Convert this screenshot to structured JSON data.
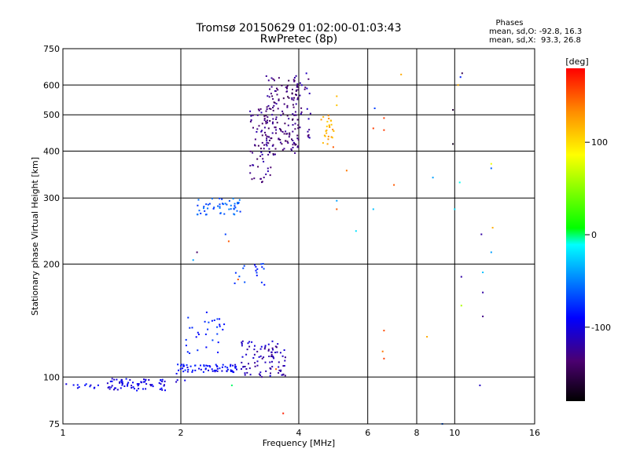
{
  "chart_data": {
    "type": "scatter",
    "title_lines": [
      "Tromsø 20150629 01:02:00-01:03:43",
      "RwPretec (8p)"
    ],
    "stats": {
      "heading": "Phases",
      "lines": [
        "mean, sd,O: -92.8, 16.3",
        "mean, sd,X:  93.3, 26.8"
      ]
    },
    "xlabel": "Frequency [MHz]",
    "ylabel": "Stationary phase Virtual Height [km]",
    "x_scale": "log",
    "y_scale": "log",
    "xlim": [
      1,
      16
    ],
    "ylim": [
      75,
      750
    ],
    "x_ticks": [
      1,
      2,
      4,
      6,
      8,
      10,
      16
    ],
    "x_tick_labels": [
      "1",
      "2",
      "4",
      "6",
      "8",
      "10",
      "16"
    ],
    "y_ticks": [
      75,
      100,
      200,
      300,
      400,
      500,
      600,
      750
    ],
    "y_tick_labels": [
      "75",
      "100",
      "200",
      "300",
      "400",
      "500",
      "600",
      "750"
    ],
    "x_gridlines": [
      2,
      4,
      6,
      8,
      10
    ],
    "y_gridlines": [
      100,
      200,
      300,
      400,
      500,
      600
    ],
    "colorbar": {
      "unit": "[deg]",
      "min": -180,
      "max": 180,
      "ticks": [
        100,
        0,
        -100
      ],
      "tick_labels": [
        "100",
        "0",
        "-100"
      ]
    },
    "clusters": [
      {
        "x_range": [
          1.02,
          1.25
        ],
        "y_range": [
          93,
          96
        ],
        "n": 12,
        "phase": -95
      },
      {
        "x_range": [
          1.3,
          1.85
        ],
        "y_range": [
          92,
          99
        ],
        "n": 70,
        "phase": -100
      },
      {
        "x_range": [
          1.9,
          2.05
        ],
        "y_range": [
          97,
          110
        ],
        "n": 10,
        "phase": -95
      },
      {
        "x_range": [
          2.0,
          2.8
        ],
        "y_range": [
          103,
          108
        ],
        "n": 60,
        "phase": -90
      },
      {
        "x_range": [
          2.0,
          2.6
        ],
        "y_range": [
          115,
          150
        ],
        "n": 30,
        "phase": -80
      },
      {
        "x_range": [
          2.85,
          3.7
        ],
        "y_range": [
          100,
          125
        ],
        "n": 90,
        "phase": -115
      },
      {
        "x_range": [
          2.2,
          2.85
        ],
        "y_range": [
          270,
          300
        ],
        "n": 50,
        "phase": -60
      },
      {
        "x_range": [
          2.7,
          3.3
        ],
        "y_range": [
          175,
          205
        ],
        "n": 18,
        "phase": -75
      },
      {
        "x_range": [
          3.0,
          3.4
        ],
        "y_range": [
          330,
          520
        ],
        "n": 70,
        "phase": -130
      },
      {
        "x_range": [
          3.3,
          4.0
        ],
        "y_range": [
          390,
          640
        ],
        "n": 160,
        "phase": -135
      },
      {
        "x_range": [
          3.9,
          4.3
        ],
        "y_range": [
          430,
          650
        ],
        "n": 25,
        "phase": -125
      },
      {
        "x_range": [
          4.55,
          4.95
        ],
        "y_range": [
          415,
          500
        ],
        "n": 25,
        "phase": 120
      }
    ],
    "points": [
      {
        "x": 2.2,
        "y": 215,
        "phase": -140
      },
      {
        "x": 2.15,
        "y": 205,
        "phase": -40
      },
      {
        "x": 2.6,
        "y": 240,
        "phase": -70
      },
      {
        "x": 2.65,
        "y": 230,
        "phase": 150
      },
      {
        "x": 2.8,
        "y": 182,
        "phase": 150
      },
      {
        "x": 3.65,
        "y": 80,
        "phase": 170
      },
      {
        "x": 3.5,
        "y": 105,
        "phase": 150
      },
      {
        "x": 2.7,
        "y": 95,
        "phase": 0
      },
      {
        "x": 5.0,
        "y": 560,
        "phase": 115
      },
      {
        "x": 5.0,
        "y": 530,
        "phase": 110
      },
      {
        "x": 4.9,
        "y": 410,
        "phase": 150
      },
      {
        "x": 5.3,
        "y": 355,
        "phase": 140
      },
      {
        "x": 5.0,
        "y": 280,
        "phase": 150
      },
      {
        "x": 5.0,
        "y": 295,
        "phase": -40
      },
      {
        "x": 5.6,
        "y": 245,
        "phase": -20
      },
      {
        "x": 6.25,
        "y": 520,
        "phase": -70
      },
      {
        "x": 6.2,
        "y": 460,
        "phase": 160
      },
      {
        "x": 6.6,
        "y": 490,
        "phase": 160
      },
      {
        "x": 6.6,
        "y": 455,
        "phase": 160
      },
      {
        "x": 7.3,
        "y": 640,
        "phase": 120
      },
      {
        "x": 7.0,
        "y": 325,
        "phase": 150
      },
      {
        "x": 6.2,
        "y": 280,
        "phase": -30
      },
      {
        "x": 6.6,
        "y": 133,
        "phase": 155
      },
      {
        "x": 6.55,
        "y": 117,
        "phase": 140
      },
      {
        "x": 6.6,
        "y": 112,
        "phase": 160
      },
      {
        "x": 8.5,
        "y": 128,
        "phase": 120
      },
      {
        "x": 8.8,
        "y": 340,
        "phase": -40
      },
      {
        "x": 9.3,
        "y": 75,
        "phase": -60
      },
      {
        "x": 9.9,
        "y": 515,
        "phase": -160
      },
      {
        "x": 9.9,
        "y": 418,
        "phase": -170
      },
      {
        "x": 10.0,
        "y": 280,
        "phase": -20
      },
      {
        "x": 10.3,
        "y": 330,
        "phase": -10
      },
      {
        "x": 10.45,
        "y": 645,
        "phase": -150
      },
      {
        "x": 10.35,
        "y": 630,
        "phase": -80
      },
      {
        "x": 10.2,
        "y": 600,
        "phase": 120
      },
      {
        "x": 10.4,
        "y": 185,
        "phase": -120
      },
      {
        "x": 10.4,
        "y": 155,
        "phase": 60
      },
      {
        "x": 11.7,
        "y": 240,
        "phase": -120
      },
      {
        "x": 11.8,
        "y": 190,
        "phase": -30
      },
      {
        "x": 11.8,
        "y": 168,
        "phase": -120
      },
      {
        "x": 11.8,
        "y": 145,
        "phase": -130
      },
      {
        "x": 11.6,
        "y": 95,
        "phase": -110
      },
      {
        "x": 12.4,
        "y": 370,
        "phase": 80
      },
      {
        "x": 12.4,
        "y": 360,
        "phase": -60
      },
      {
        "x": 12.5,
        "y": 250,
        "phase": 120
      },
      {
        "x": 12.4,
        "y": 215,
        "phase": -40
      }
    ]
  }
}
